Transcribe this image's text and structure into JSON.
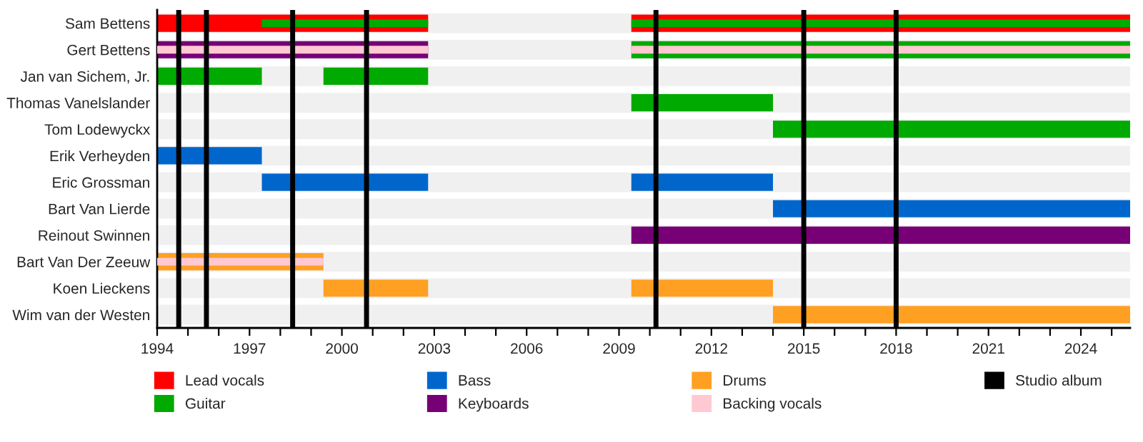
{
  "chart_data": {
    "type": "bar",
    "orientation": "horizontal",
    "categories": [
      "Sam Bettens",
      "Gert Bettens",
      "Jan van Sichem, Jr.",
      "Thomas Vanelslander",
      "Tom Lodewyckx",
      "Erik Verheyden",
      "Eric Grossman",
      "Bart Van Lierde",
      "Reinout Swinnen",
      "Bart Van Der Zeeuw",
      "Koen Lieckens",
      "Wim van der Westen"
    ],
    "series": [
      {
        "name": "Lead vocals",
        "color": "#ff0000",
        "base": [
          1994,
          null,
          null,
          null,
          null,
          null,
          null,
          null,
          null,
          null,
          null,
          null
        ],
        "values": [
          8.8,
          null,
          null,
          null,
          null,
          null,
          null,
          null,
          null,
          null,
          null,
          null
        ]
      },
      {
        "color": "#ff0000",
        "base": [
          2009.4,
          null,
          null,
          null,
          null,
          null,
          null,
          null,
          null,
          null,
          null,
          null
        ],
        "values": [
          16.2,
          null,
          null,
          null,
          null,
          null,
          null,
          null,
          null,
          null,
          null,
          null
        ]
      },
      {
        "name": "Guitar",
        "color": "#00aa00",
        "base": [
          null,
          2009.4,
          1994,
          2009.4,
          2014.0,
          null,
          null,
          null,
          null,
          null,
          null,
          null
        ],
        "values": [
          null,
          16.2,
          3.4,
          4.6,
          11.6,
          null,
          null,
          null,
          null,
          null,
          null,
          null
        ]
      },
      {
        "color": "#00aa00",
        "base": [
          null,
          null,
          1999.4,
          null,
          null,
          null,
          null,
          null,
          null,
          null,
          null,
          null
        ],
        "values": [
          null,
          null,
          3.4,
          null,
          null,
          null,
          null,
          null,
          null,
          null,
          null,
          null
        ]
      },
      {
        "name": "Bass",
        "color": "#0066cc",
        "base": [
          null,
          null,
          null,
          null,
          null,
          1994,
          1997.4,
          2014.0,
          null,
          null,
          null,
          null
        ],
        "values": [
          null,
          null,
          null,
          null,
          null,
          3.4,
          5.4,
          11.6,
          null,
          null,
          null,
          null
        ]
      },
      {
        "color": "#0066cc",
        "base": [
          null,
          null,
          null,
          null,
          null,
          null,
          2009.4,
          null,
          null,
          null,
          null,
          null
        ],
        "values": [
          null,
          null,
          null,
          null,
          null,
          null,
          4.6,
          null,
          null,
          null,
          null,
          null
        ]
      },
      {
        "name": "Keyboards",
        "color": "#770077",
        "base": [
          null,
          1994,
          null,
          null,
          null,
          null,
          null,
          null,
          2009.4,
          null,
          null,
          null
        ],
        "values": [
          null,
          8.8,
          null,
          null,
          null,
          null,
          null,
          null,
          16.2,
          null,
          null,
          null
        ]
      },
      {
        "name": "Drums",
        "color": "#ffa022",
        "base": [
          null,
          null,
          null,
          null,
          null,
          null,
          null,
          null,
          null,
          1994,
          1999.4,
          2014.0
        ],
        "values": [
          null,
          null,
          null,
          null,
          null,
          null,
          null,
          null,
          null,
          5.4,
          3.4,
          11.6
        ]
      },
      {
        "color": "#ffa022",
        "base": [
          null,
          null,
          null,
          null,
          null,
          null,
          null,
          null,
          null,
          null,
          2009.4,
          null
        ],
        "values": [
          null,
          null,
          null,
          null,
          null,
          null,
          null,
          null,
          null,
          null,
          4.6,
          null
        ]
      },
      {
        "name": "Backing vocals",
        "color": "#ffc8d2",
        "base": [
          null,
          1994,
          null,
          null,
          null,
          null,
          null,
          null,
          null,
          1994,
          null,
          null
        ],
        "values": [
          null,
          8.8,
          null,
          null,
          null,
          null,
          null,
          null,
          null,
          5.4,
          null,
          null
        ]
      },
      {
        "color": "#ffc8d2",
        "base": [
          null,
          2009.4,
          null,
          null,
          null,
          null,
          null,
          null,
          null,
          null,
          null,
          null
        ],
        "values": [
          null,
          16.2,
          null,
          null,
          null,
          null,
          null,
          null,
          null,
          null,
          null,
          null
        ]
      },
      {
        "color": "#00aa00",
        "base": [
          1997.4,
          null,
          null,
          null,
          null,
          null,
          null,
          null,
          null,
          null,
          null,
          null
        ],
        "values": [
          5.4,
          null,
          null,
          null,
          null,
          null,
          null,
          null,
          null,
          null,
          null,
          null
        ]
      },
      {
        "color": "#00aa00",
        "base": [
          2009.4,
          null,
          null,
          null,
          null,
          null,
          null,
          null,
          null,
          null,
          null,
          null
        ],
        "values": [
          16.2,
          null,
          null,
          null,
          null,
          null,
          null,
          null,
          null,
          null,
          null,
          null
        ]
      }
    ],
    "ref_lines": [
      {
        "axis": "x",
        "value": 1994.7,
        "label": "Studio album",
        "color": "#000000"
      },
      {
        "axis": "x",
        "value": 1995.6,
        "label": null,
        "color": "#000000"
      },
      {
        "axis": "x",
        "value": 1998.4,
        "label": null,
        "color": "#000000"
      },
      {
        "axis": "x",
        "value": 2000.8,
        "label": null,
        "color": "#000000"
      },
      {
        "axis": "x",
        "value": 2010.2,
        "label": null,
        "color": "#000000"
      },
      {
        "axis": "x",
        "value": 2015.0,
        "label": null,
        "color": "#000000"
      },
      {
        "axis": "x",
        "value": 2018.0,
        "label": null,
        "color": "#000000"
      }
    ],
    "xlim": [
      1994,
      2025.6
    ],
    "xticks": [
      1994,
      {
        "value": 1995,
        "label": null
      },
      {
        "value": 1996,
        "label": null
      },
      1997,
      {
        "value": 1998,
        "label": null
      },
      {
        "value": 1999,
        "label": null
      },
      2000,
      {
        "value": 2001,
        "label": null
      },
      {
        "value": 2002,
        "label": null
      },
      2003,
      {
        "value": 2004,
        "label": null
      },
      {
        "value": 2005,
        "label": null
      },
      2006,
      {
        "value": 2007,
        "label": null
      },
      {
        "value": 2008,
        "label": null
      },
      2009,
      {
        "value": 2010,
        "label": null
      },
      {
        "value": 2011,
        "label": null
      },
      2012,
      {
        "value": 2013,
        "label": null
      },
      {
        "value": 2014,
        "label": null
      },
      2015,
      {
        "value": 2016,
        "label": null
      },
      {
        "value": 2017,
        "label": null
      },
      2018,
      {
        "value": 2019,
        "label": null
      },
      {
        "value": 2020,
        "label": null
      },
      2021,
      {
        "value": 2022,
        "label": null
      },
      {
        "value": 2023,
        "label": null
      },
      2024,
      {
        "value": 2025,
        "label": null
      }
    ],
    "grid": "y",
    "legend": "bottom"
  }
}
